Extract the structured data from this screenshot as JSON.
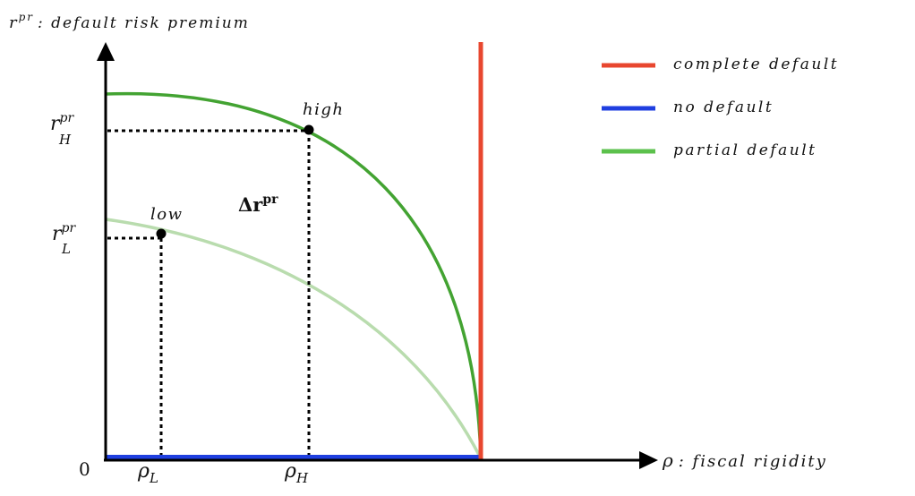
{
  "y_axis": {
    "symbol": "r",
    "symbol_sup": "pr",
    "label": ": default risk premium"
  },
  "x_axis": {
    "symbol": "ρ",
    "label": ": fiscal rigidity"
  },
  "origin": "0",
  "y_ticks": {
    "high": {
      "base": "r",
      "sup": "pr",
      "sub": "H"
    },
    "low": {
      "base": "r",
      "sup": "pr",
      "sub": "L"
    }
  },
  "x_ticks": {
    "low": {
      "base": "ρ",
      "sub": "L"
    },
    "high": {
      "base": "ρ",
      "sub": "H"
    }
  },
  "points": {
    "high": "high",
    "low": "low"
  },
  "delta": {
    "base": "Δr",
    "sup": "pr"
  },
  "legend": [
    {
      "label": "complete default",
      "color": "#e8472f"
    },
    {
      "label": "no default",
      "color": "#1f3fe0"
    },
    {
      "label": "partial default",
      "color": "#5cc14c"
    }
  ],
  "colors": {
    "axis": "#000000",
    "complete_default": "#e8472f",
    "no_default": "#1f3fe0",
    "partial_default_high": "#43a332",
    "partial_default_low": "#b9dcae",
    "guides": "#000000"
  }
}
